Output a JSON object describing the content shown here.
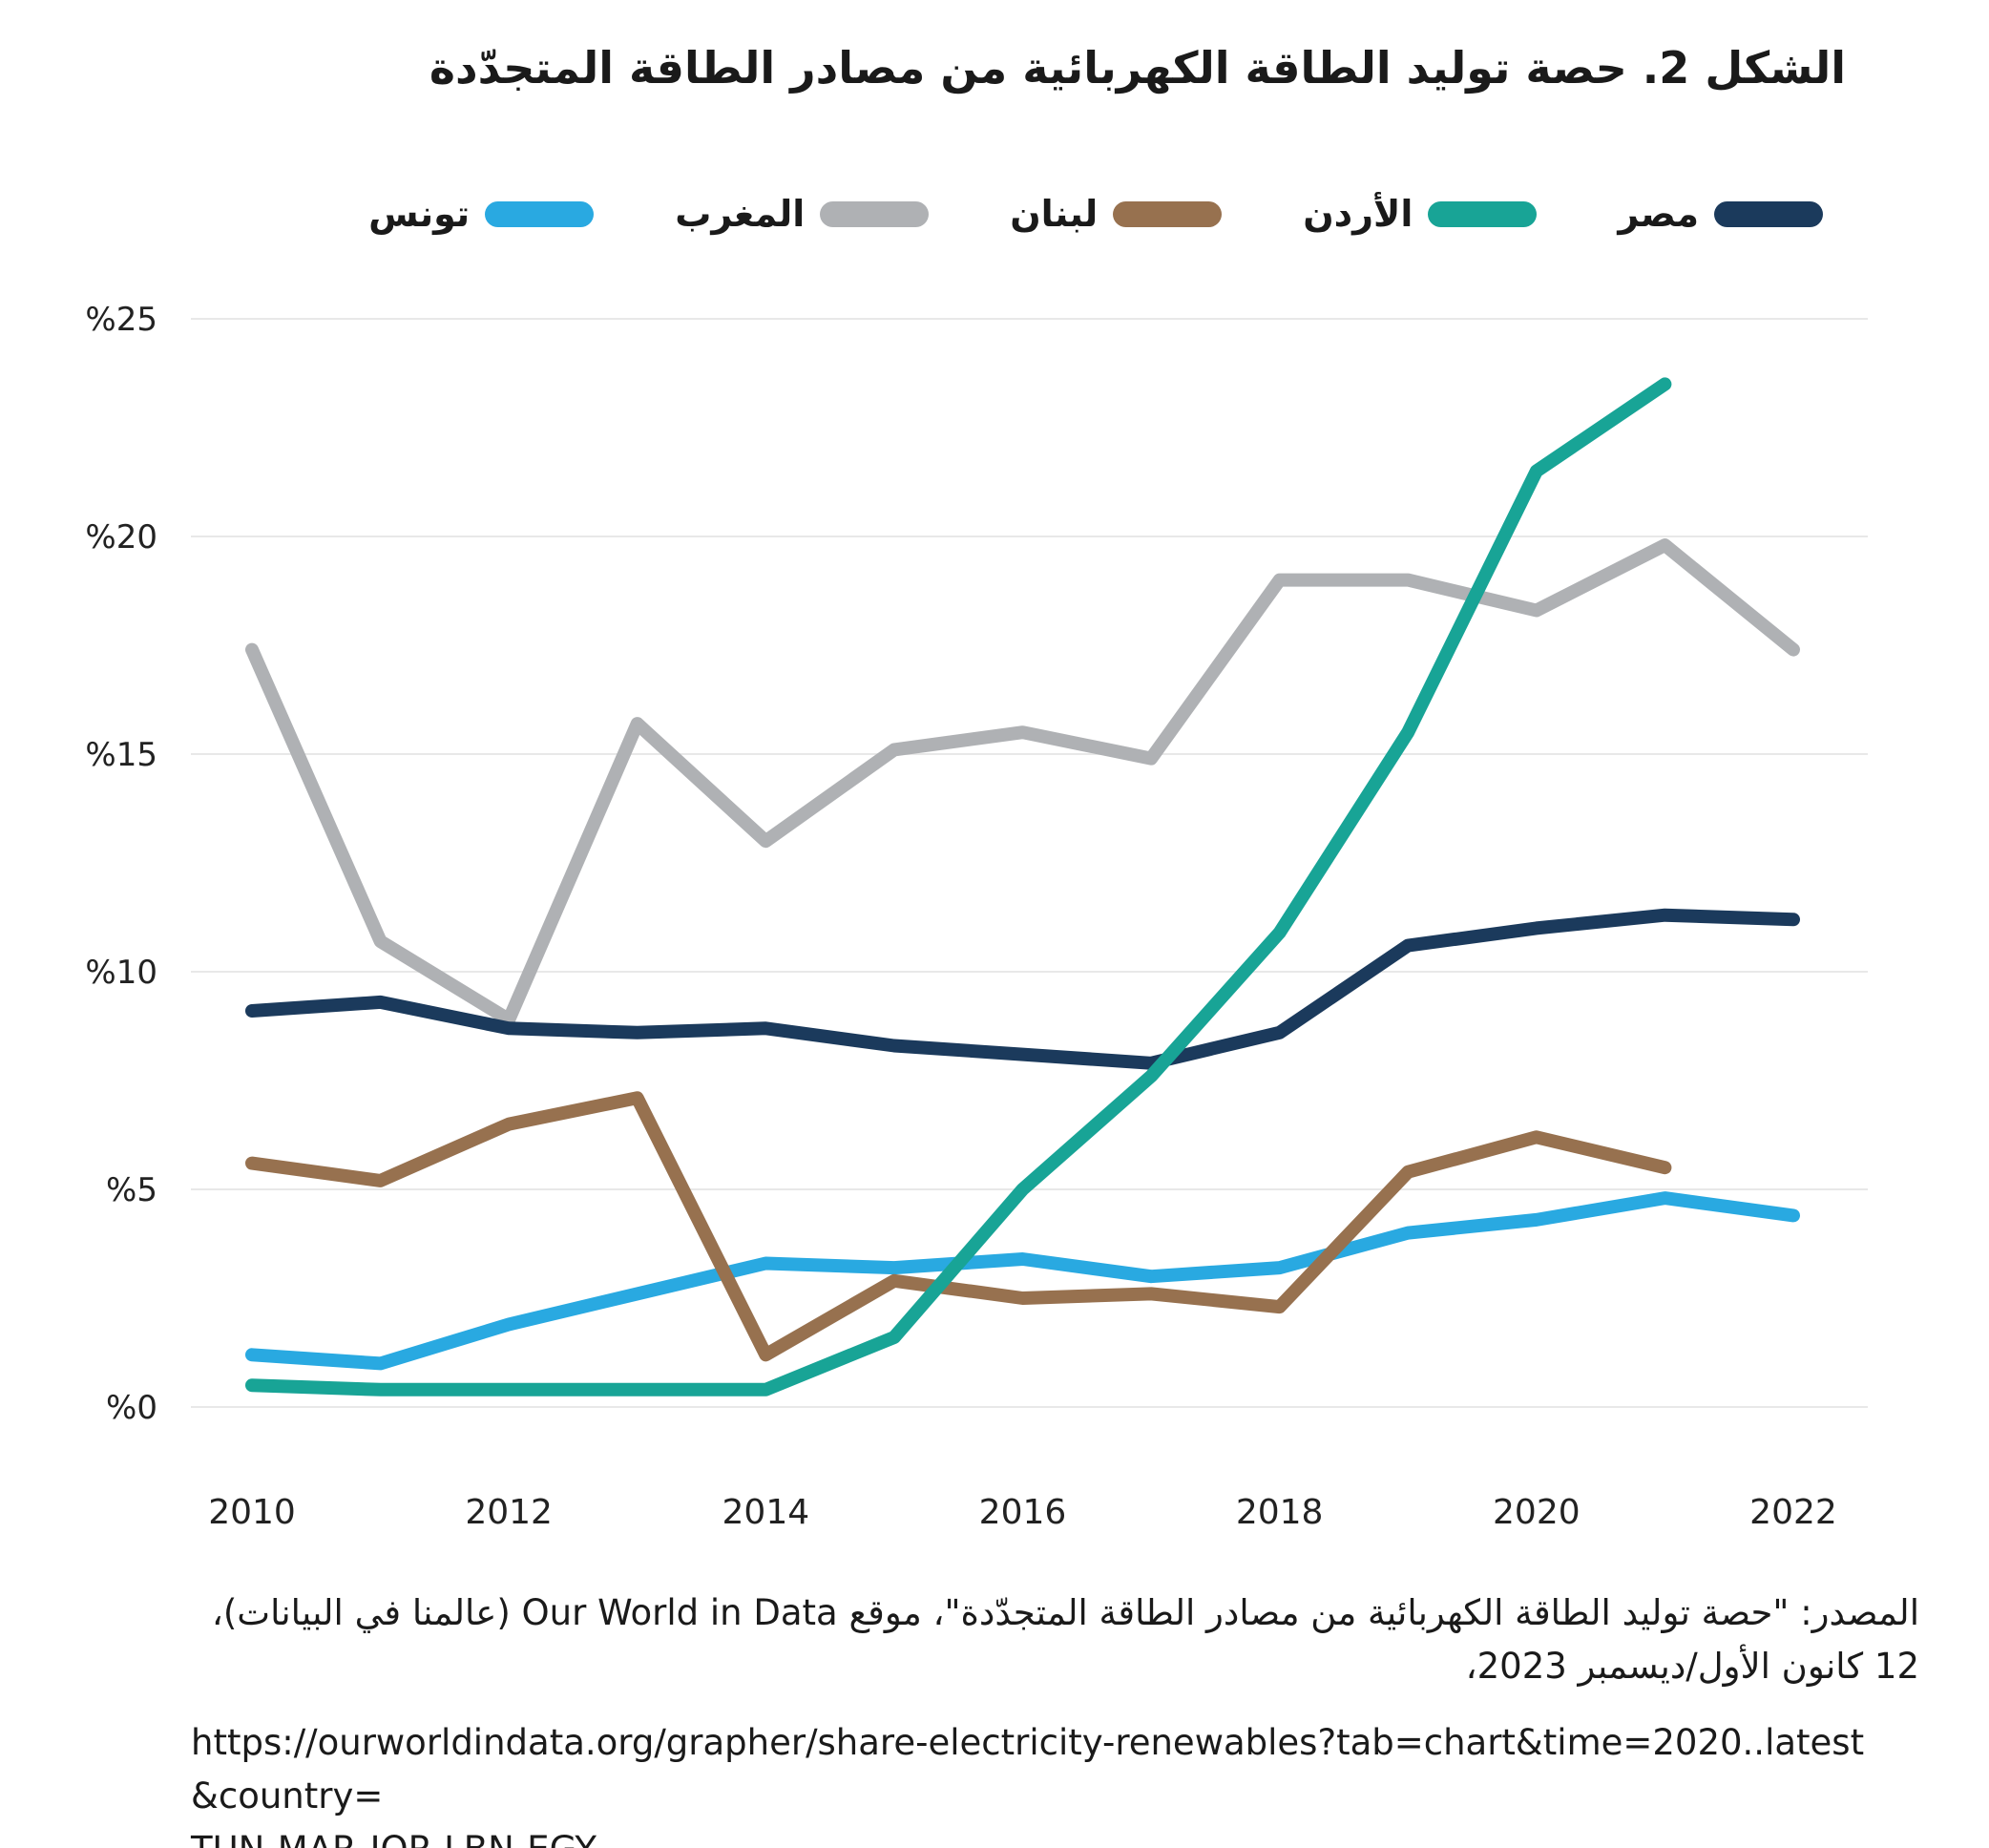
{
  "title": "الشكل 2. حصة توليد الطاقة الكهربائية من مصادر الطاقة المتجدّدة",
  "legend": [
    {
      "label": "مصر",
      "color": "#1B3A5C"
    },
    {
      "label": "الأردن",
      "color": "#18A496"
    },
    {
      "label": "لبنان",
      "color": "#97714F"
    },
    {
      "label": "المغرب",
      "color": "#AFB1B4"
    },
    {
      "label": "تونس",
      "color": "#29A9E1"
    }
  ],
  "chart_data": {
    "type": "line",
    "title": "الشكل 2. حصة توليد الطاقة الكهربائية من مصادر الطاقة المتجدّدة",
    "xlabel": "",
    "ylabel": "",
    "ylim": [
      0,
      25
    ],
    "grid": "horizontal",
    "legend_position": "top",
    "x": [
      2010,
      2011,
      2012,
      2013,
      2014,
      2015,
      2016,
      2017,
      2018,
      2019,
      2020,
      2021,
      2022
    ],
    "y_ticks": [
      {
        "v": 0,
        "label": "%0"
      },
      {
        "v": 5,
        "label": "%5"
      },
      {
        "v": 10,
        "label": "%10"
      },
      {
        "v": 15,
        "label": "%15"
      },
      {
        "v": 20,
        "label": "%20"
      },
      {
        "v": 25,
        "label": "%25"
      }
    ],
    "x_ticks": [
      {
        "v": 2010,
        "label": "2010"
      },
      {
        "v": 2012,
        "label": "2012"
      },
      {
        "v": 2014,
        "label": "2014"
      },
      {
        "v": 2016,
        "label": "2016"
      },
      {
        "v": 2018,
        "label": "2018"
      },
      {
        "v": 2020,
        "label": "2020"
      },
      {
        "v": 2022,
        "label": "2022"
      }
    ],
    "series": [
      {
        "name": "المغرب",
        "key": "morocco",
        "color": "#AFB1B4",
        "values": [
          17.4,
          10.7,
          8.9,
          15.7,
          13.0,
          15.1,
          15.5,
          14.9,
          19.0,
          19.0,
          18.3,
          19.8,
          17.4
        ]
      },
      {
        "name": "مصر",
        "key": "egypt",
        "color": "#1B3A5C",
        "values": [
          9.1,
          9.3,
          8.7,
          8.6,
          8.7,
          8.3,
          8.1,
          7.9,
          8.6,
          10.6,
          11.0,
          11.3,
          11.2
        ]
      },
      {
        "name": "تونس",
        "key": "tunisia",
        "color": "#29A9E1",
        "values": [
          1.2,
          1.0,
          1.9,
          2.6,
          3.3,
          3.2,
          3.4,
          3.0,
          3.2,
          4.0,
          4.3,
          4.8,
          4.4
        ]
      },
      {
        "name": "لبنان",
        "key": "lebanon",
        "color": "#97714F",
        "values": [
          5.6,
          5.2,
          6.5,
          7.1,
          1.2,
          2.9,
          2.5,
          2.6,
          2.3,
          5.4,
          6.2,
          5.5,
          null
        ]
      },
      {
        "name": "الأردن",
        "key": "jordan",
        "color": "#18A496",
        "values": [
          0.5,
          0.4,
          0.4,
          0.4,
          0.4,
          1.6,
          5.0,
          7.6,
          10.9,
          15.5,
          21.5,
          23.5,
          null
        ]
      }
    ]
  },
  "source": {
    "line1": "المصدر: \"حصة توليد الطاقة الكهربائية من مصادر الطاقة المتجدّدة\"، موقع Our World in Data (عالمنا في البيانات)،",
    "line2": "12 كانون الأول/ديسمبر 2023،",
    "url_line1": "https://ourworldindata.org/grapher/share-electricity-renewables?tab=chart&time=2020..latest&country=",
    "url_line2": "TUN-MAR-JOR-LBN-EGY"
  }
}
